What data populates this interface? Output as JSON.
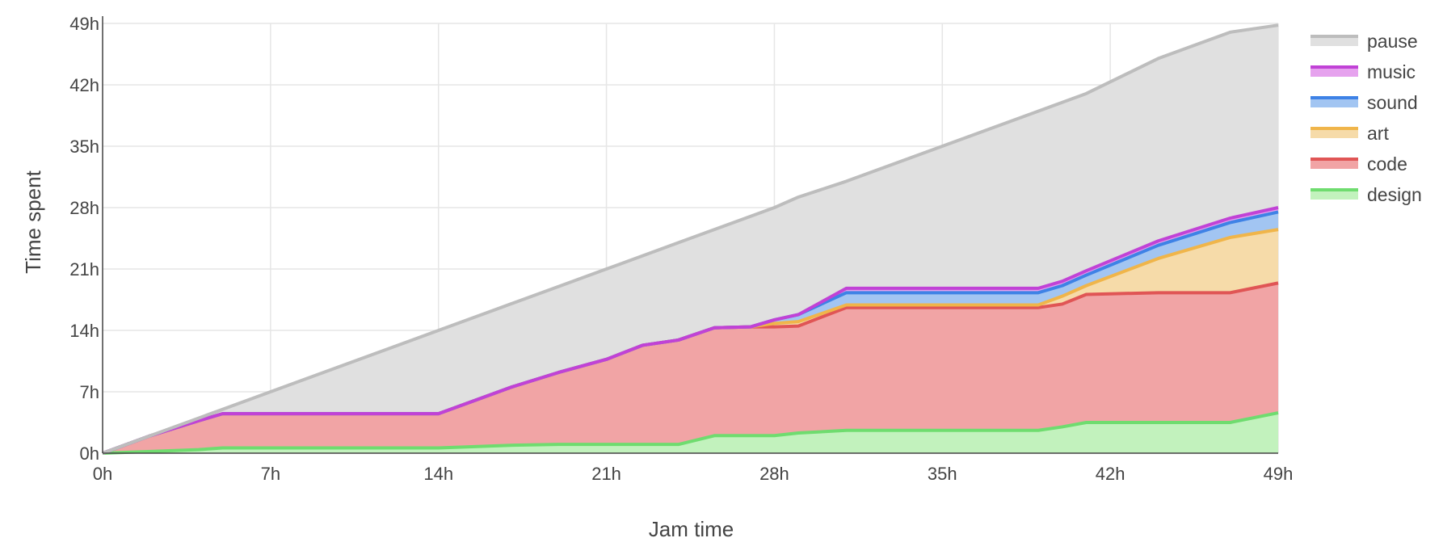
{
  "chart_data": {
    "type": "area",
    "stacked": true,
    "xlabel": "Jam time",
    "ylabel": "Time spent",
    "xlim": [
      0,
      49
    ],
    "ylim": [
      0,
      49
    ],
    "x_ticks": [
      "0h",
      "7h",
      "14h",
      "21h",
      "28h",
      "35h",
      "42h",
      "49h"
    ],
    "y_ticks": [
      "0h",
      "7h",
      "14h",
      "21h",
      "28h",
      "35h",
      "42h",
      "49h"
    ],
    "grid": true,
    "legend_position": "right",
    "x": [
      0,
      2,
      4,
      5,
      14,
      17,
      19,
      21,
      22.5,
      24,
      25.5,
      27,
      28,
      29,
      31,
      35,
      39,
      40,
      41,
      44,
      47,
      49
    ],
    "series": [
      {
        "name": "design",
        "color": "#6fdc6f",
        "fill": "#c2f2bd",
        "values": [
          0,
          0.2,
          0.4,
          0.6,
          0.6,
          0.9,
          1.0,
          1.0,
          1.0,
          1.0,
          2.0,
          2.0,
          2.0,
          2.3,
          2.6,
          2.6,
          2.6,
          3.0,
          3.5,
          3.5,
          3.5,
          4.6
        ]
      },
      {
        "name": "code",
        "color": "#e05555",
        "fill": "#f1a4a5",
        "values": [
          0,
          1.8,
          3.3,
          3.9,
          3.9,
          6.6,
          8.2,
          9.7,
          11.3,
          11.9,
          12.3,
          12.4,
          12.4,
          12.2,
          14.0,
          14.0,
          14.0,
          14.0,
          14.6,
          14.8,
          14.8,
          14.8
        ]
      },
      {
        "name": "art",
        "color": "#f0b54a",
        "fill": "#f6dba9",
        "values": [
          0,
          0,
          0,
          0,
          0,
          0,
          0,
          0,
          0,
          0,
          0,
          0,
          0.4,
          0.5,
          0.3,
          0.3,
          0.3,
          0.9,
          1.0,
          3.9,
          6.3,
          6.1
        ]
      },
      {
        "name": "sound",
        "color": "#3e82e6",
        "fill": "#a2c5f2",
        "values": [
          0,
          0,
          0,
          0,
          0,
          0,
          0,
          0,
          0,
          0,
          0,
          0,
          0.4,
          0.8,
          1.4,
          1.4,
          1.4,
          1.2,
          1.2,
          1.5,
          1.7,
          2.0
        ]
      },
      {
        "name": "music",
        "color": "#c142d6",
        "fill": "#e6a2ee",
        "values": [
          0,
          0,
          0,
          0,
          0,
          0,
          0,
          0,
          0,
          0,
          0,
          0,
          0,
          0,
          0.5,
          0.5,
          0.5,
          0.5,
          0.5,
          0.5,
          0.5,
          0.5
        ]
      },
      {
        "name": "pause",
        "color": "#bdbdbd",
        "fill": "#e0e0e0",
        "values": [
          0,
          0,
          0.3,
          0.5,
          9.5,
          9.5,
          9.8,
          10.3,
          10.2,
          11.1,
          11.2,
          12.6,
          12.8,
          13.4,
          12.2,
          16.2,
          20.2,
          20.4,
          20.2,
          20.8,
          21.2,
          20.8
        ]
      }
    ]
  }
}
